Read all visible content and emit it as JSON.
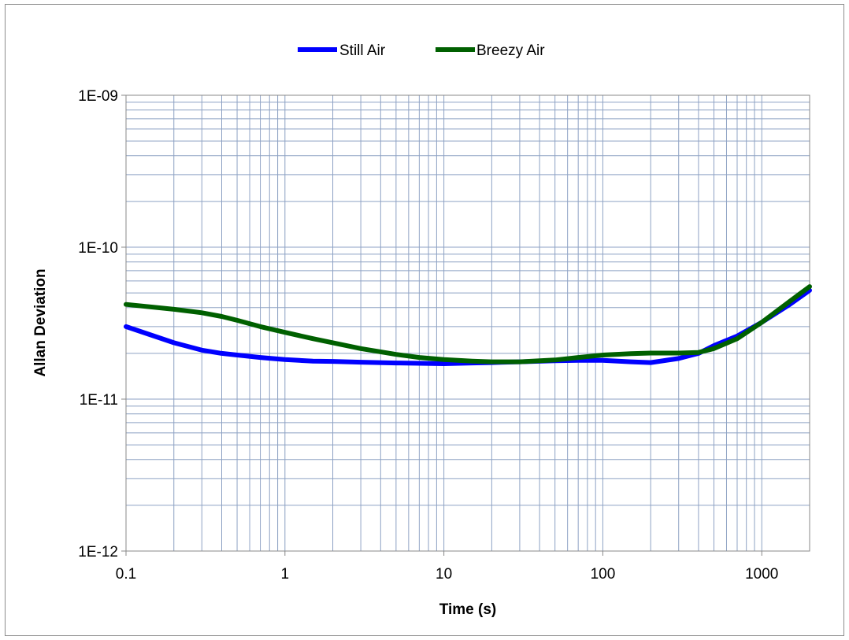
{
  "chart_data": {
    "type": "line",
    "xlabel": "Time (s)",
    "ylabel": "Allan Deviation",
    "x_scale": "log",
    "y_scale": "log",
    "xlim": [
      0.1,
      2000
    ],
    "ylim": [
      1e-12,
      1e-09
    ],
    "grid": true,
    "legend_position": "top",
    "x_tick_labels": [
      "0.1",
      "1",
      "10",
      "100",
      "1000"
    ],
    "x_tick_values": [
      0.1,
      1,
      10,
      100,
      1000
    ],
    "y_tick_labels": [
      "1E-12",
      "1E-11",
      "1E-10",
      "1E-09"
    ],
    "y_tick_values": [
      1e-12,
      1e-11,
      1e-10,
      1e-09
    ],
    "series": [
      {
        "name": "Still Air",
        "color": "#0000ff",
        "x": [
          0.1,
          0.2,
          0.3,
          0.4,
          0.5,
          0.7,
          1,
          1.5,
          2,
          3,
          5,
          7,
          10,
          15,
          20,
          30,
          50,
          70,
          100,
          150,
          200,
          300,
          400,
          500,
          700,
          1000,
          1500,
          2000
        ],
        "y": [
          3e-11,
          2.35e-11,
          2.1e-11,
          2e-11,
          1.95e-11,
          1.88e-11,
          1.82e-11,
          1.78e-11,
          1.77e-11,
          1.75e-11,
          1.73e-11,
          1.72e-11,
          1.71e-11,
          1.73e-11,
          1.74e-11,
          1.76e-11,
          1.79e-11,
          1.8e-11,
          1.8e-11,
          1.76e-11,
          1.74e-11,
          1.85e-11,
          2e-11,
          2.25e-11,
          2.6e-11,
          3.2e-11,
          4.2e-11,
          5.2e-11
        ]
      },
      {
        "name": "Breezy Air",
        "color": "#006000",
        "x": [
          0.1,
          0.2,
          0.3,
          0.4,
          0.5,
          0.7,
          1,
          1.5,
          2,
          3,
          5,
          7,
          10,
          15,
          20,
          30,
          50,
          70,
          100,
          150,
          200,
          300,
          400,
          500,
          700,
          1000,
          1500,
          2000
        ],
        "y": [
          4.2e-11,
          3.9e-11,
          3.7e-11,
          3.5e-11,
          3.3e-11,
          3e-11,
          2.75e-11,
          2.5e-11,
          2.35e-11,
          2.15e-11,
          1.97e-11,
          1.88e-11,
          1.82e-11,
          1.78e-11,
          1.76e-11,
          1.76e-11,
          1.81e-11,
          1.88e-11,
          1.95e-11,
          1.99e-11,
          2.01e-11,
          2.01e-11,
          2.03e-11,
          2.15e-11,
          2.5e-11,
          3.2e-11,
          4.4e-11,
          5.5e-11
        ]
      }
    ]
  }
}
